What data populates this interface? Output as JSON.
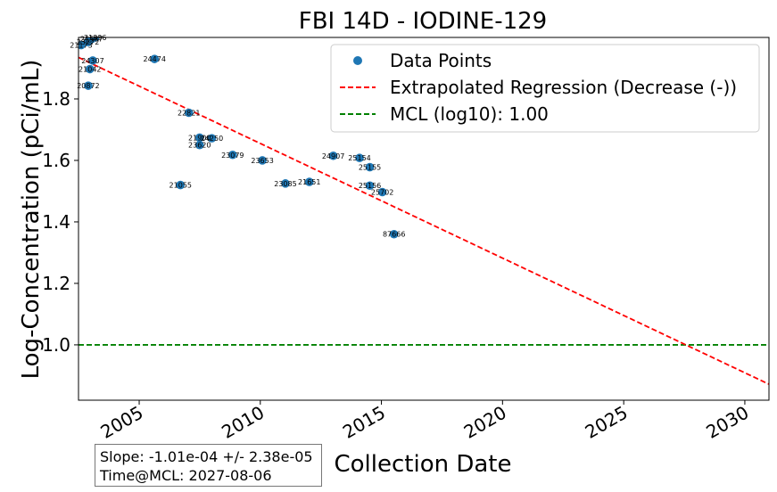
{
  "chart_data": {
    "type": "scatter",
    "title": "FBI 14D - IODINE-129",
    "xlabel": "Collection Date",
    "ylabel": "Log-Concentration (pCi/mL)",
    "xlim": [
      "2002-07-01",
      "2030-12-31"
    ],
    "ylim": [
      0.82,
      2.0
    ],
    "x_ticks": [
      "2005",
      "2010",
      "2015",
      "2020",
      "2025",
      "2030"
    ],
    "y_ticks": [
      "1.0",
      "1.2",
      "1.4",
      "1.6",
      "1.8"
    ],
    "grid": false,
    "legend_position": "top-right",
    "series": [
      {
        "name": "Data Points",
        "kind": "scatter",
        "color": "#1f77b4",
        "points": [
          {
            "x": "2002-08-10",
            "y": 1.975,
            "label": "21173"
          },
          {
            "x": "2002-11-20",
            "y": 1.985,
            "label": "23272"
          },
          {
            "x": "2003-01-15",
            "y": 1.995,
            "label": "21587"
          },
          {
            "x": "2003-03-10",
            "y": 2.0,
            "label": "21896"
          },
          {
            "x": "2003-02-01",
            "y": 1.925,
            "label": "24307"
          },
          {
            "x": "2002-12-20",
            "y": 1.897,
            "label": "21042"
          },
          {
            "x": "2002-11-25",
            "y": 1.843,
            "label": "20872"
          },
          {
            "x": "2005-08-20",
            "y": 1.93,
            "label": "24474"
          },
          {
            "x": "2006-09-15",
            "y": 1.52,
            "label": "21055"
          },
          {
            "x": "2007-01-20",
            "y": 1.755,
            "label": "22821"
          },
          {
            "x": "2007-07-01",
            "y": 1.674,
            "label": "21900"
          },
          {
            "x": "2008-01-01",
            "y": 1.672,
            "label": "24250"
          },
          {
            "x": "2007-07-01",
            "y": 1.65,
            "label": "23620"
          },
          {
            "x": "2008-11-10",
            "y": 1.618,
            "label": "23079"
          },
          {
            "x": "2010-02-01",
            "y": 1.6,
            "label": "23653"
          },
          {
            "x": "2011-01-15",
            "y": 1.525,
            "label": "23085"
          },
          {
            "x": "2012-01-10",
            "y": 1.53,
            "label": "21651"
          },
          {
            "x": "2013-01-05",
            "y": 1.615,
            "label": "24907"
          },
          {
            "x": "2014-02-05",
            "y": 1.608,
            "label": "25154"
          },
          {
            "x": "2014-07-10",
            "y": 1.578,
            "label": "25155"
          },
          {
            "x": "2014-07-10",
            "y": 1.518,
            "label": "25156"
          },
          {
            "x": "2015-01-15",
            "y": 1.497,
            "label": "25702"
          },
          {
            "x": "2015-07-10",
            "y": 1.36,
            "label": "87666"
          }
        ]
      },
      {
        "name": "Extrapolated Regression (Decrease (-))",
        "kind": "line",
        "style": "dashed",
        "color": "#ff0000",
        "points": [
          {
            "x": "2002-07-01",
            "y": 1.935
          },
          {
            "x": "2030-12-31",
            "y": 0.872
          }
        ]
      },
      {
        "name": "MCL (log10): 1.00",
        "kind": "hline",
        "style": "dashed",
        "color": "#008000",
        "y": 1.0
      }
    ],
    "annotations": {
      "slope_text": "Slope: -1.01e-04 +/- 2.38e-05",
      "time_at_mcl_text": "Time@MCL: 2027-08-06"
    }
  }
}
